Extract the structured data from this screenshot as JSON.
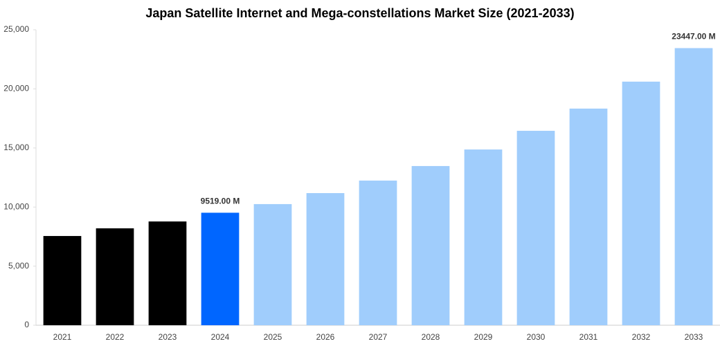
{
  "chart_data": {
    "type": "bar",
    "title": "Japan Satellite Internet and Mega-constellations Market Size (2021-2033)",
    "categories": [
      "2021",
      "2022",
      "2023",
      "2024",
      "2025",
      "2026",
      "2027",
      "2028",
      "2029",
      "2030",
      "2031",
      "2032",
      "2033"
    ],
    "values": [
      7550,
      8200,
      8780,
      9519,
      10250,
      11180,
      12240,
      13470,
      14870,
      16450,
      18330,
      20610,
      23447
    ],
    "value_labels": [
      null,
      null,
      null,
      "9519.00 M",
      null,
      null,
      null,
      null,
      null,
      null,
      null,
      null,
      "23447.00 M"
    ],
    "colors": [
      "#000000",
      "#000000",
      "#000000",
      "#0066ff",
      "#a0cdfc",
      "#a0cdfc",
      "#a0cdfc",
      "#a0cdfc",
      "#a0cdfc",
      "#a0cdfc",
      "#a0cdfc",
      "#a0cdfc",
      "#a0cdfc"
    ],
    "ylim": [
      0,
      25000
    ],
    "yticks": [
      0,
      {
        "value": 5000,
        "label": "5,000"
      },
      {
        "value": 10000,
        "label": "10,000"
      },
      {
        "value": 15000,
        "label": "15,000"
      },
      {
        "value": 20000,
        "label": "20,000"
      },
      {
        "value": 25000,
        "label": "25,000"
      }
    ],
    "grid": false
  }
}
